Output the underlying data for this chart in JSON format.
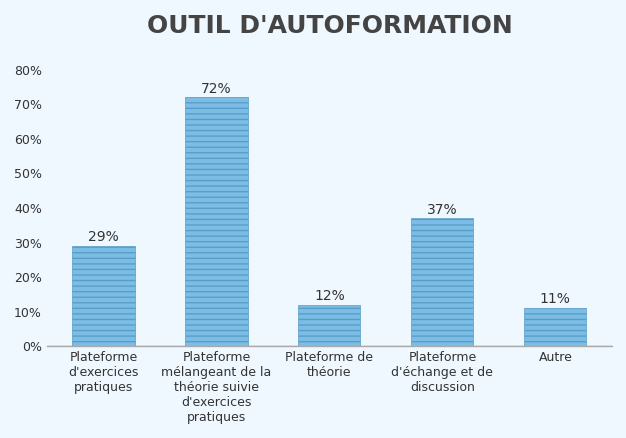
{
  "title": "OUTIL D'AUTOFORMATION",
  "categories": [
    "Plateforme\nd'exercices\npratiques",
    "Plateforme\nmélangeant de la\nthéorie suivie\nd'exercices\npratiques",
    "Plateforme de\nthéorie",
    "Plateforme\nd'échange et de\ndiscussion",
    "Autre"
  ],
  "values": [
    0.29,
    0.72,
    0.12,
    0.37,
    0.11
  ],
  "labels": [
    "29%",
    "72%",
    "12%",
    "37%",
    "11%"
  ],
  "bar_color_face": "#7BBDE4",
  "bar_color_edge": "#5A9EC8",
  "bar_hatch": "---",
  "background_color": "#F0F8FF",
  "ylim": [
    0,
    0.85
  ],
  "yticks": [
    0.0,
    0.1,
    0.2,
    0.3,
    0.4,
    0.5,
    0.6,
    0.7,
    0.8
  ],
  "ytick_labels": [
    "0%",
    "10%",
    "20%",
    "30%",
    "40%",
    "50%",
    "60%",
    "70%",
    "80%"
  ],
  "title_fontsize": 18,
  "label_fontsize": 9,
  "tick_fontsize": 9,
  "value_fontsize": 10
}
